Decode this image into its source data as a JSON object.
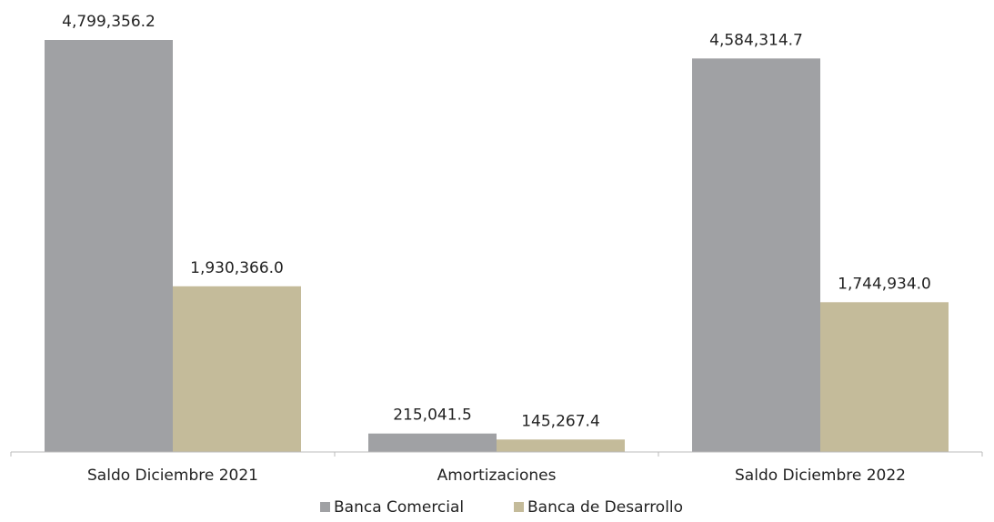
{
  "chart_data": {
    "type": "bar",
    "categories": [
      "Saldo Diciembre 2021",
      "Amortizaciones",
      "Saldo Diciembre 2022"
    ],
    "series": [
      {
        "name": "Banca Comercial",
        "color": "#a0a1a4",
        "values": [
          4799356.2,
          215041.5,
          4584314.7
        ],
        "value_labels": [
          "4,799,356.2",
          "215,041.5",
          "4,584,314.7"
        ]
      },
      {
        "name": "Banca de Desarrollo",
        "color": "#c4bb9a",
        "values": [
          1930366.0,
          145267.4,
          1744934.0
        ],
        "value_labels": [
          "1,930,366.0",
          "145,267.4",
          "1,744,934.0"
        ]
      }
    ],
    "grid": false,
    "legend": "bottom"
  }
}
